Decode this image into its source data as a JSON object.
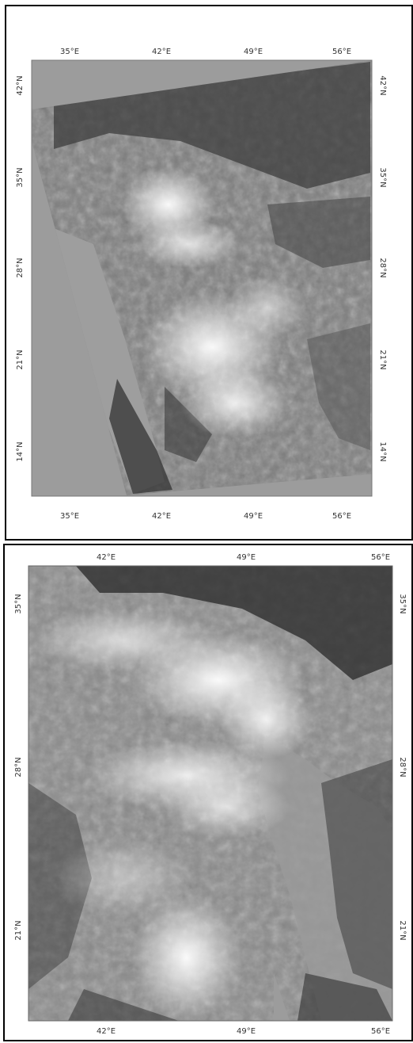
{
  "panels": [
    {
      "name": "top",
      "lon_ticks_top": [
        "35°E",
        "42°E",
        "49°E",
        "56°E"
      ],
      "lon_ticks_bottom": [
        "35°E",
        "42°E",
        "49°E",
        "56°E"
      ],
      "lat_ticks_left": [
        "42°N",
        "35°N",
        "28°N",
        "21°N",
        "14°N"
      ],
      "lat_ticks_right": [
        "42°N",
        "35°N",
        "28°N",
        "21°N",
        "14°N"
      ]
    },
    {
      "name": "bottom",
      "lon_ticks_top": [
        "42°E",
        "49°E",
        "56°E"
      ],
      "lon_ticks_bottom": [
        "42°E",
        "49°E",
        "56°E"
      ],
      "lat_ticks_left": [
        "35°N",
        "28°N",
        "21°N"
      ],
      "lat_ticks_right": [
        "35°N",
        "28°N",
        "21°N"
      ]
    }
  ],
  "colors": {
    "background_gray": "#9c9c9c",
    "dust_white": "#f0f0f0",
    "land_dark": "#3a3a3a"
  }
}
